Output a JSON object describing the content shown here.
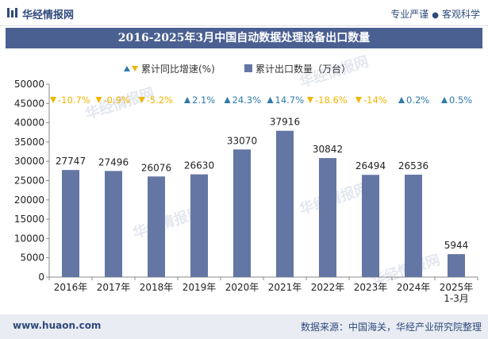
{
  "header": {
    "brand": "华经情报网",
    "tagline_left": "专业严谨",
    "tagline_right": "客观科学"
  },
  "footer": {
    "url": "www.huaon.com",
    "source": "数据来源：中国海关，华经产业研究院整理"
  },
  "colors": {
    "bar": "#6476a3",
    "up": "#2f7aa8",
    "down": "#f0b400",
    "header": "#4a6091"
  },
  "chart_data": {
    "type": "bar",
    "title": "2016-2025年3月中国自动数据处理设备出口数量",
    "legend": {
      "growth": "累计同比增速(%)",
      "bar": "累计出口数量（万台）"
    },
    "categories": [
      "2016年",
      "2017年",
      "2018年",
      "2019年",
      "2020年",
      "2021年",
      "2022年",
      "2023年",
      "2024年",
      "2025年\n1-3月"
    ],
    "values": [
      27747,
      27496,
      26076,
      26630,
      33070,
      37916,
      30842,
      26494,
      26536,
      5944
    ],
    "growth": [
      -10.7,
      -0.9,
      -5.2,
      2.1,
      24.3,
      14.7,
      -18.6,
      -14,
      0.2,
      0.5
    ],
    "growth_labels": [
      "-10.7%",
      "-0.9%",
      "-5.2%",
      "2.1%",
      "24.3%",
      "14.7%",
      "-18.6%",
      "-14%",
      "0.2%",
      "0.5%"
    ],
    "ylim": [
      0,
      50000
    ],
    "yticks": [
      0,
      5000,
      10000,
      15000,
      20000,
      25000,
      30000,
      35000,
      40000,
      45000,
      50000
    ]
  }
}
